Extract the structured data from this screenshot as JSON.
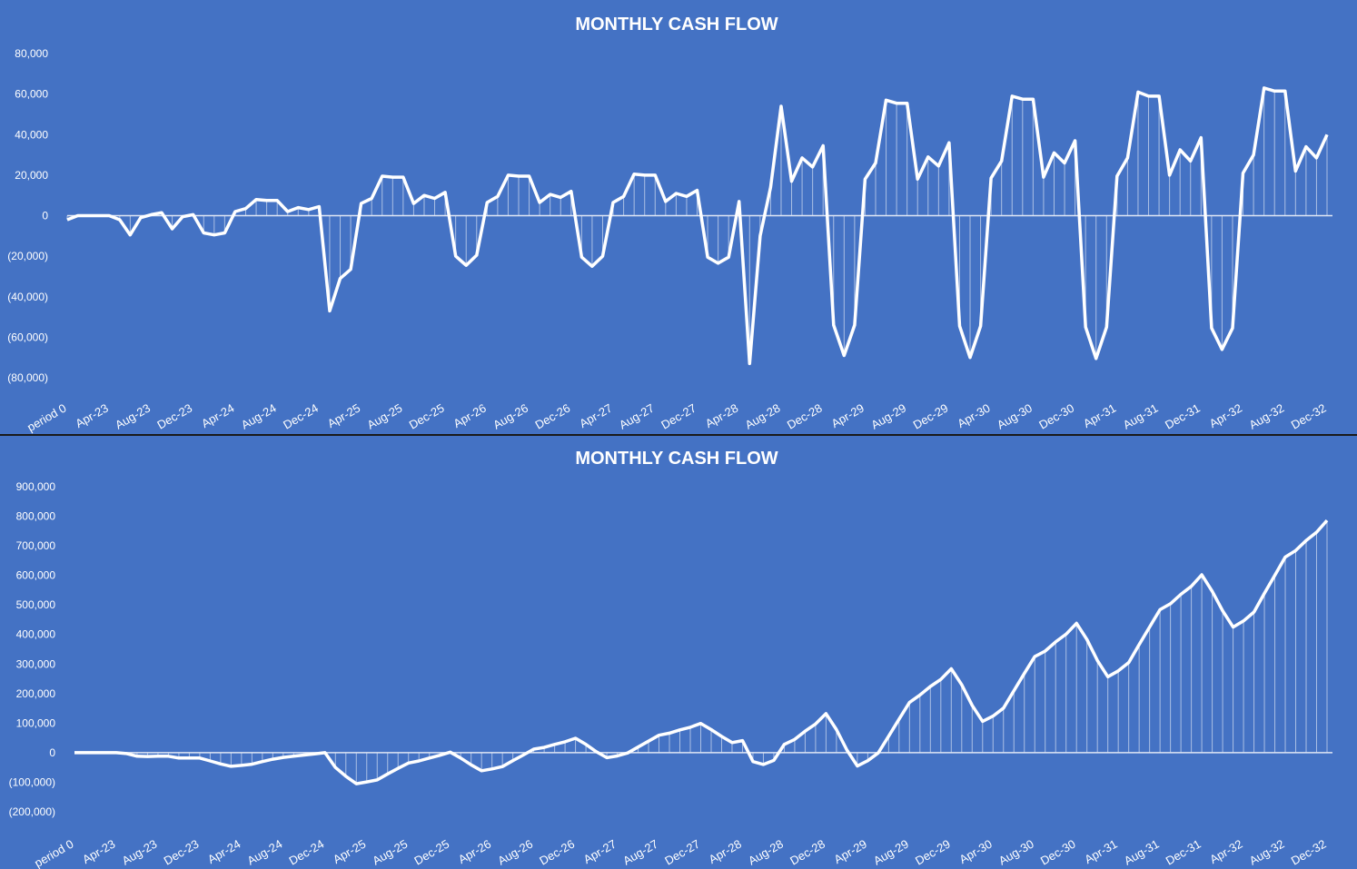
{
  "chart_data": [
    {
      "type": "line",
      "title": "MONTHLY CASH FLOW",
      "xlabel": "",
      "ylabel": "",
      "ylim": [
        -80000,
        80000
      ],
      "yticks": [
        80000,
        60000,
        40000,
        20000,
        0,
        -20000,
        -40000,
        -60000,
        -80000
      ],
      "ytick_labels": [
        "80,000",
        "60,000",
        "40,000",
        "20,000",
        "0",
        "(20,000)",
        "(40,000)",
        "(60,000)",
        "(80,000)"
      ],
      "x_tick_labels": [
        "period 0",
        "Apr-23",
        "Aug-23",
        "Dec-23",
        "Apr-24",
        "Aug-24",
        "Dec-24",
        "Apr-25",
        "Aug-25",
        "Dec-25",
        "Apr-26",
        "Aug-26",
        "Dec-26",
        "Apr-27",
        "Aug-27",
        "Dec-27",
        "Apr-28",
        "Aug-28",
        "Dec-28",
        "Apr-29",
        "Aug-29",
        "Dec-29",
        "Apr-30",
        "Aug-30",
        "Dec-30",
        "Apr-31",
        "Aug-31",
        "Dec-31",
        "Apr-32",
        "Aug-32",
        "Dec-32"
      ],
      "tick_every": 4,
      "grid": false,
      "line_color": "#ffffff",
      "drop_lines": true,
      "series": [
        {
          "values": [
            -2000,
            0,
            0,
            0,
            0,
            -2000,
            -9500,
            -1000,
            500,
            1500,
            -6500,
            -500,
            500,
            -8500,
            -9500,
            -8500,
            2000,
            3500,
            8000,
            7500,
            7500,
            2000,
            4000,
            3000,
            4500,
            -47000,
            -31000,
            -26500,
            6000,
            8500,
            19500,
            19000,
            19000,
            6000,
            10000,
            8500,
            11500,
            -20000,
            -24500,
            -19500,
            6500,
            9500,
            20000,
            19500,
            19500,
            6500,
            10500,
            9000,
            12000,
            -20500,
            -25000,
            -20000,
            6500,
            9500,
            20500,
            20000,
            20000,
            7000,
            11000,
            9500,
            12500,
            -20500,
            -23500,
            -20500,
            7000,
            -73000,
            -10000,
            14000,
            54000,
            17000,
            28500,
            24000,
            34500,
            -54000,
            -69000,
            -54000,
            18000,
            26000,
            57000,
            55500,
            55500,
            18000,
            29000,
            24500,
            36000,
            -54500,
            -70000,
            -54500,
            18500,
            27000,
            59000,
            57500,
            57500,
            19000,
            31000,
            26000,
            37000,
            -55000,
            -70500,
            -55000,
            19500,
            28500,
            61000,
            59000,
            59000,
            20000,
            32500,
            27000,
            38500,
            -55500,
            -66000,
            -55500,
            21000,
            30000,
            63000,
            61500,
            61500,
            22000,
            34000,
            28500,
            40000
          ]
        }
      ]
    },
    {
      "type": "line",
      "title": "MONTHLY CASH FLOW",
      "xlabel": "",
      "ylabel": "",
      "ylim": [
        -200000,
        900000
      ],
      "yticks": [
        900000,
        800000,
        700000,
        600000,
        500000,
        400000,
        300000,
        200000,
        100000,
        0,
        -100000,
        -200000
      ],
      "ytick_labels": [
        "900,000",
        "800,000",
        "700,000",
        "600,000",
        "500,000",
        "400,000",
        "300,000",
        "200,000",
        "100,000",
        "0",
        "(100,000)",
        "(200,000)"
      ],
      "x_tick_labels": [
        "period 0",
        "Apr-23",
        "Aug-23",
        "Dec-23",
        "Apr-24",
        "Aug-24",
        "Dec-24",
        "Apr-25",
        "Aug-25",
        "Dec-25",
        "Apr-26",
        "Aug-26",
        "Dec-26",
        "Apr-27",
        "Aug-27",
        "Dec-27",
        "Apr-28",
        "Aug-28",
        "Dec-28",
        "Apr-29",
        "Aug-29",
        "Dec-29",
        "Apr-30",
        "Aug-30",
        "Dec-30",
        "Apr-31",
        "Aug-31",
        "Dec-31",
        "Apr-32",
        "Aug-32",
        "Dec-32"
      ],
      "tick_every": 4,
      "grid": false,
      "line_color": "#ffffff",
      "drop_lines": true,
      "series": [
        {
          "values": [
            0,
            0,
            0,
            0,
            0,
            -3000,
            -12000,
            -13000,
            -12000,
            -12000,
            -18000,
            -18000,
            -18000,
            -28000,
            -38000,
            -46000,
            -43000,
            -39000,
            -30000,
            -22000,
            -16000,
            -12000,
            -8000,
            -4000,
            0,
            -50000,
            -80000,
            -105000,
            -99000,
            -92000,
            -72000,
            -53000,
            -35000,
            -28000,
            -18000,
            -9000,
            2000,
            -18000,
            -41000,
            -61000,
            -55000,
            -47000,
            -27000,
            -8000,
            12000,
            18000,
            28000,
            37000,
            49000,
            28000,
            3000,
            -17000,
            -11000,
            -1000,
            19000,
            39000,
            59000,
            66000,
            77000,
            86000,
            99000,
            78000,
            55000,
            34000,
            41000,
            -30000,
            -40000,
            -26000,
            28000,
            45000,
            73000,
            97000,
            132000,
            78000,
            9000,
            -45000,
            -27000,
            -1000,
            56000,
            113000,
            170000,
            195000,
            224000,
            248000,
            284000,
            230000,
            160000,
            106000,
            124000,
            151000,
            210000,
            268000,
            325000,
            344000,
            375000,
            401000,
            438000,
            383000,
            312000,
            257000,
            277000,
            305000,
            366000,
            425000,
            484000,
            504000,
            536000,
            563000,
            602000,
            546000,
            480000,
            425000,
            446000,
            476000,
            539000,
            600000,
            662000,
            684000,
            718000,
            746000,
            786000
          ]
        }
      ]
    }
  ]
}
